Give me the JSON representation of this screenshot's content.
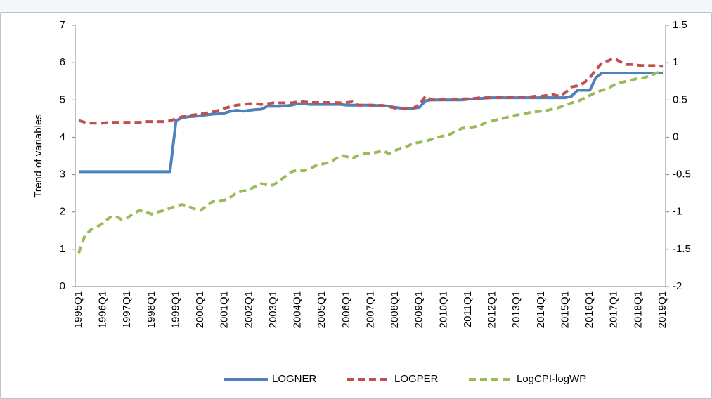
{
  "chart_data": {
    "type": "line",
    "y_label": "Trend of variables",
    "categories": [
      "1995Q1",
      null,
      null,
      null,
      "1996Q1",
      null,
      null,
      null,
      "1997Q1",
      null,
      null,
      null,
      "1998Q1",
      null,
      null,
      null,
      "1999Q1",
      null,
      null,
      null,
      "2000Q1",
      null,
      null,
      null,
      "2001Q1",
      null,
      null,
      null,
      "2002Q1",
      null,
      null,
      null,
      "2003Q1",
      null,
      null,
      null,
      "2004Q1",
      null,
      null,
      null,
      "2005Q1",
      null,
      null,
      null,
      "2006Q1",
      null,
      null,
      null,
      "2007Q1",
      null,
      null,
      null,
      "2008Q1",
      null,
      null,
      null,
      "2009Q1",
      null,
      null,
      null,
      "2010Q1",
      null,
      null,
      null,
      "2011Q1",
      null,
      null,
      null,
      "2012Q1",
      null,
      null,
      null,
      "2013Q1",
      null,
      null,
      null,
      "2014Q1",
      null,
      null,
      null,
      "2015Q1",
      null,
      null,
      null,
      "2016Q1",
      null,
      null,
      null,
      "2017Q1",
      null,
      null,
      null,
      "2018Q1",
      null,
      null,
      null,
      "2019Q1"
    ],
    "series": [
      {
        "name": "LOGNER",
        "color": "#4f81bd",
        "dash": false,
        "values": [
          3.08,
          3.08,
          3.08,
          3.08,
          3.08,
          3.08,
          3.08,
          3.08,
          3.08,
          3.08,
          3.08,
          3.08,
          3.08,
          3.08,
          3.08,
          3.08,
          4.45,
          4.52,
          4.55,
          4.56,
          4.58,
          4.6,
          4.62,
          4.63,
          4.65,
          4.7,
          4.72,
          4.7,
          4.72,
          4.74,
          4.75,
          4.83,
          4.83,
          4.83,
          4.84,
          4.86,
          4.9,
          4.9,
          4.88,
          4.88,
          4.88,
          4.88,
          4.88,
          4.88,
          4.86,
          4.86,
          4.86,
          4.86,
          4.86,
          4.85,
          4.85,
          4.83,
          4.8,
          4.78,
          4.78,
          4.78,
          4.8,
          4.98,
          5.0,
          5.0,
          5.0,
          5.0,
          5.0,
          5.0,
          5.02,
          5.03,
          5.04,
          5.05,
          5.06,
          5.06,
          5.06,
          5.06,
          5.06,
          5.06,
          5.06,
          5.06,
          5.06,
          5.06,
          5.06,
          5.06,
          5.06,
          5.1,
          5.26,
          5.26,
          5.26,
          5.6,
          5.72,
          5.72,
          5.72,
          5.72,
          5.72,
          5.72,
          5.72,
          5.72,
          5.72,
          5.72,
          5.72
        ]
      },
      {
        "name": "LOGPER",
        "color": "#c0504d",
        "dash": true,
        "values": [
          4.45,
          4.4,
          4.38,
          4.38,
          4.38,
          4.4,
          4.4,
          4.4,
          4.4,
          4.4,
          4.4,
          4.42,
          4.42,
          4.42,
          4.42,
          4.44,
          4.5,
          4.55,
          4.58,
          4.6,
          4.62,
          4.65,
          4.68,
          4.72,
          4.78,
          4.82,
          4.86,
          4.88,
          4.9,
          4.9,
          4.88,
          4.9,
          4.92,
          4.92,
          4.92,
          4.92,
          4.95,
          4.95,
          4.93,
          4.93,
          4.93,
          4.93,
          4.93,
          4.92,
          4.93,
          4.95,
          4.86,
          4.86,
          4.86,
          4.86,
          4.85,
          4.82,
          4.78,
          4.76,
          4.76,
          4.78,
          4.88,
          5.1,
          5.0,
          5.0,
          5.02,
          5.02,
          5.02,
          5.03,
          5.03,
          5.04,
          5.06,
          5.06,
          5.07,
          5.07,
          5.07,
          5.07,
          5.08,
          5.08,
          5.08,
          5.1,
          5.1,
          5.12,
          5.14,
          5.1,
          5.2,
          5.35,
          5.38,
          5.45,
          5.6,
          5.8,
          6.0,
          6.05,
          6.12,
          6.02,
          5.95,
          5.95,
          5.93,
          5.92,
          5.92,
          5.92,
          5.9
        ]
      },
      {
        "name": "LogCPI-logWP",
        "color": "#9bbb59",
        "dash": true,
        "axis": "y2",
        "values": [
          -1.55,
          -1.32,
          -1.24,
          -1.2,
          -1.15,
          -1.08,
          -1.05,
          -1.1,
          -1.08,
          -1.02,
          -0.98,
          -1.0,
          -1.03,
          -1.0,
          -0.98,
          -0.95,
          -0.92,
          -0.9,
          -0.92,
          -0.96,
          -0.98,
          -0.92,
          -0.86,
          -0.86,
          -0.84,
          -0.8,
          -0.74,
          -0.72,
          -0.7,
          -0.66,
          -0.62,
          -0.64,
          -0.64,
          -0.58,
          -0.52,
          -0.46,
          -0.44,
          -0.45,
          -0.42,
          -0.38,
          -0.36,
          -0.34,
          -0.3,
          -0.24,
          -0.26,
          -0.28,
          -0.24,
          -0.22,
          -0.22,
          -0.2,
          -0.18,
          -0.22,
          -0.18,
          -0.14,
          -0.12,
          -0.08,
          -0.07,
          -0.05,
          -0.03,
          0.0,
          0.02,
          0.04,
          0.08,
          0.12,
          0.13,
          0.14,
          0.16,
          0.2,
          0.22,
          0.24,
          0.26,
          0.28,
          0.3,
          0.31,
          0.33,
          0.34,
          0.35,
          0.36,
          0.38,
          0.4,
          0.43,
          0.46,
          0.48,
          0.52,
          0.56,
          0.6,
          0.63,
          0.66,
          0.7,
          0.73,
          0.75,
          0.77,
          0.79,
          0.8,
          0.83,
          0.86,
          0.89
        ]
      }
    ],
    "ylim": [
      0,
      7
    ],
    "yticks": [
      0,
      1,
      2,
      3,
      4,
      5,
      6,
      7
    ],
    "y2lim": [
      -2,
      1.5
    ],
    "y2ticks": [
      -2,
      -1.5,
      -1,
      -0.5,
      0,
      0.5,
      1,
      1.5
    ],
    "legend": "bottom"
  }
}
